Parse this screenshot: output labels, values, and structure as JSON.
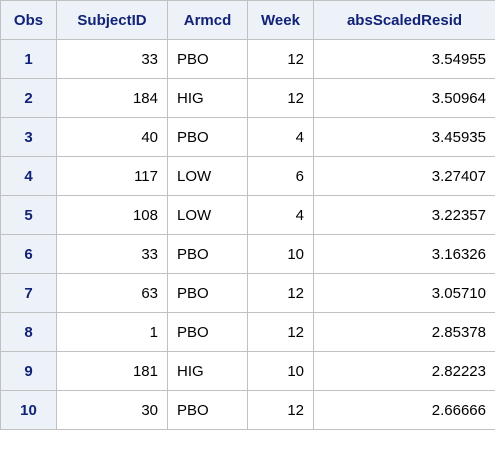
{
  "table": {
    "columns": [
      "Obs",
      "SubjectID",
      "Armcd",
      "Week",
      "absScaledResid"
    ],
    "rows": [
      {
        "obs": "1",
        "subject": "33",
        "arm": "PBO",
        "week": "12",
        "resid": "3.54955"
      },
      {
        "obs": "2",
        "subject": "184",
        "arm": "HIG",
        "week": "12",
        "resid": "3.50964"
      },
      {
        "obs": "3",
        "subject": "40",
        "arm": "PBO",
        "week": "4",
        "resid": "3.45935"
      },
      {
        "obs": "4",
        "subject": "117",
        "arm": "LOW",
        "week": "6",
        "resid": "3.27407"
      },
      {
        "obs": "5",
        "subject": "108",
        "arm": "LOW",
        "week": "4",
        "resid": "3.22357"
      },
      {
        "obs": "6",
        "subject": "33",
        "arm": "PBO",
        "week": "10",
        "resid": "3.16326"
      },
      {
        "obs": "7",
        "subject": "63",
        "arm": "PBO",
        "week": "12",
        "resid": "3.05710"
      },
      {
        "obs": "8",
        "subject": "1",
        "arm": "PBO",
        "week": "12",
        "resid": "2.85378"
      },
      {
        "obs": "9",
        "subject": "181",
        "arm": "HIG",
        "week": "10",
        "resid": "2.82223"
      },
      {
        "obs": "10",
        "subject": "30",
        "arm": "PBO",
        "week": "12",
        "resid": "2.66666"
      }
    ]
  },
  "colors": {
    "header_bg": "#edf2f9",
    "header_text": "#112277",
    "border": "#c1c1c1"
  }
}
